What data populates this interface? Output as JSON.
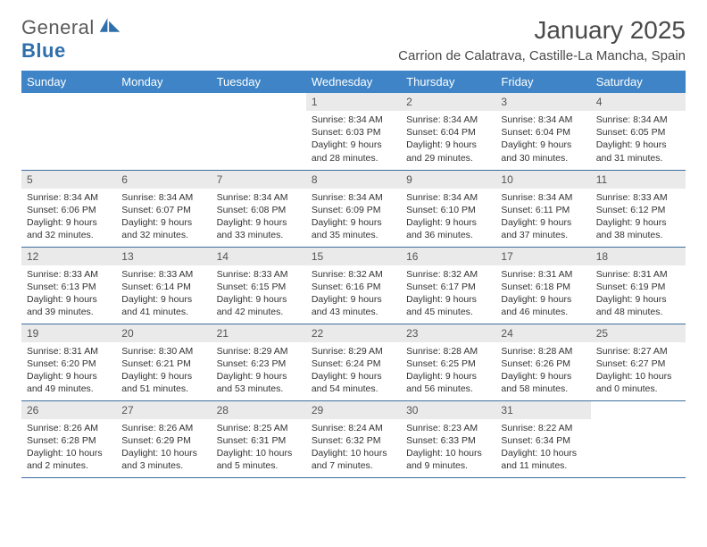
{
  "brand": {
    "part1": "General",
    "part2": "Blue"
  },
  "title": "January 2025",
  "location": "Carrion de Calatrava, Castille-La Mancha, Spain",
  "colors": {
    "header_bg": "#3e84c6",
    "header_fg": "#ffffff",
    "daynum_bg": "#eaeaea",
    "rule": "#3e6fa0",
    "text": "#333333",
    "title": "#4a4a4a"
  },
  "weekdays": [
    "Sunday",
    "Monday",
    "Tuesday",
    "Wednesday",
    "Thursday",
    "Friday",
    "Saturday"
  ],
  "weeks": [
    [
      {
        "n": "",
        "sr": "",
        "ss": "",
        "dl": ""
      },
      {
        "n": "",
        "sr": "",
        "ss": "",
        "dl": ""
      },
      {
        "n": "",
        "sr": "",
        "ss": "",
        "dl": ""
      },
      {
        "n": "1",
        "sr": "8:34 AM",
        "ss": "6:03 PM",
        "dl": "9 hours and 28 minutes."
      },
      {
        "n": "2",
        "sr": "8:34 AM",
        "ss": "6:04 PM",
        "dl": "9 hours and 29 minutes."
      },
      {
        "n": "3",
        "sr": "8:34 AM",
        "ss": "6:04 PM",
        "dl": "9 hours and 30 minutes."
      },
      {
        "n": "4",
        "sr": "8:34 AM",
        "ss": "6:05 PM",
        "dl": "9 hours and 31 minutes."
      }
    ],
    [
      {
        "n": "5",
        "sr": "8:34 AM",
        "ss": "6:06 PM",
        "dl": "9 hours and 32 minutes."
      },
      {
        "n": "6",
        "sr": "8:34 AM",
        "ss": "6:07 PM",
        "dl": "9 hours and 32 minutes."
      },
      {
        "n": "7",
        "sr": "8:34 AM",
        "ss": "6:08 PM",
        "dl": "9 hours and 33 minutes."
      },
      {
        "n": "8",
        "sr": "8:34 AM",
        "ss": "6:09 PM",
        "dl": "9 hours and 35 minutes."
      },
      {
        "n": "9",
        "sr": "8:34 AM",
        "ss": "6:10 PM",
        "dl": "9 hours and 36 minutes."
      },
      {
        "n": "10",
        "sr": "8:34 AM",
        "ss": "6:11 PM",
        "dl": "9 hours and 37 minutes."
      },
      {
        "n": "11",
        "sr": "8:33 AM",
        "ss": "6:12 PM",
        "dl": "9 hours and 38 minutes."
      }
    ],
    [
      {
        "n": "12",
        "sr": "8:33 AM",
        "ss": "6:13 PM",
        "dl": "9 hours and 39 minutes."
      },
      {
        "n": "13",
        "sr": "8:33 AM",
        "ss": "6:14 PM",
        "dl": "9 hours and 41 minutes."
      },
      {
        "n": "14",
        "sr": "8:33 AM",
        "ss": "6:15 PM",
        "dl": "9 hours and 42 minutes."
      },
      {
        "n": "15",
        "sr": "8:32 AM",
        "ss": "6:16 PM",
        "dl": "9 hours and 43 minutes."
      },
      {
        "n": "16",
        "sr": "8:32 AM",
        "ss": "6:17 PM",
        "dl": "9 hours and 45 minutes."
      },
      {
        "n": "17",
        "sr": "8:31 AM",
        "ss": "6:18 PM",
        "dl": "9 hours and 46 minutes."
      },
      {
        "n": "18",
        "sr": "8:31 AM",
        "ss": "6:19 PM",
        "dl": "9 hours and 48 minutes."
      }
    ],
    [
      {
        "n": "19",
        "sr": "8:31 AM",
        "ss": "6:20 PM",
        "dl": "9 hours and 49 minutes."
      },
      {
        "n": "20",
        "sr": "8:30 AM",
        "ss": "6:21 PM",
        "dl": "9 hours and 51 minutes."
      },
      {
        "n": "21",
        "sr": "8:29 AM",
        "ss": "6:23 PM",
        "dl": "9 hours and 53 minutes."
      },
      {
        "n": "22",
        "sr": "8:29 AM",
        "ss": "6:24 PM",
        "dl": "9 hours and 54 minutes."
      },
      {
        "n": "23",
        "sr": "8:28 AM",
        "ss": "6:25 PM",
        "dl": "9 hours and 56 minutes."
      },
      {
        "n": "24",
        "sr": "8:28 AM",
        "ss": "6:26 PM",
        "dl": "9 hours and 58 minutes."
      },
      {
        "n": "25",
        "sr": "8:27 AM",
        "ss": "6:27 PM",
        "dl": "10 hours and 0 minutes."
      }
    ],
    [
      {
        "n": "26",
        "sr": "8:26 AM",
        "ss": "6:28 PM",
        "dl": "10 hours and 2 minutes."
      },
      {
        "n": "27",
        "sr": "8:26 AM",
        "ss": "6:29 PM",
        "dl": "10 hours and 3 minutes."
      },
      {
        "n": "28",
        "sr": "8:25 AM",
        "ss": "6:31 PM",
        "dl": "10 hours and 5 minutes."
      },
      {
        "n": "29",
        "sr": "8:24 AM",
        "ss": "6:32 PM",
        "dl": "10 hours and 7 minutes."
      },
      {
        "n": "30",
        "sr": "8:23 AM",
        "ss": "6:33 PM",
        "dl": "10 hours and 9 minutes."
      },
      {
        "n": "31",
        "sr": "8:22 AM",
        "ss": "6:34 PM",
        "dl": "10 hours and 11 minutes."
      },
      {
        "n": "",
        "sr": "",
        "ss": "",
        "dl": ""
      }
    ]
  ],
  "labels": {
    "sunrise": "Sunrise:",
    "sunset": "Sunset:",
    "daylight": "Daylight:"
  },
  "font": {
    "family": "Arial",
    "title_size_pt": 21,
    "location_size_pt": 11,
    "header_size_pt": 10,
    "daynum_size_pt": 9,
    "body_size_pt": 8
  }
}
